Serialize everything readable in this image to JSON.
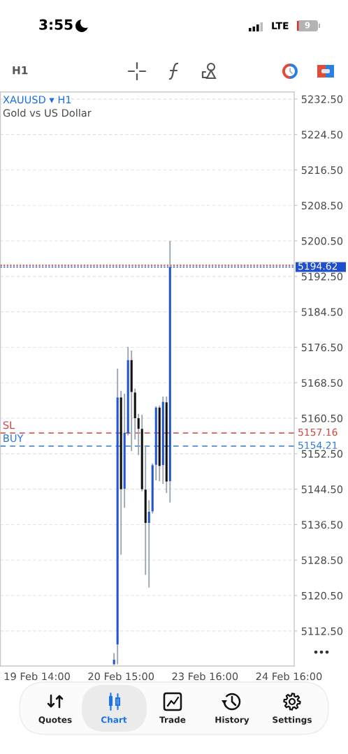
{
  "chart_data": {
    "type": "candlestick",
    "title": "XAUUSD ▾ H1",
    "subtitle": "Gold vs US Dollar",
    "categories": [
      null,
      null,
      null,
      null,
      null,
      null,
      null,
      null,
      null,
      null,
      "19 Feb 14:00",
      null,
      null,
      null,
      null,
      null,
      null,
      null,
      null,
      null,
      null,
      null,
      null,
      null,
      null,
      null,
      null,
      null,
      null,
      null,
      null,
      null,
      null,
      null,
      "20 Feb 15:00",
      null,
      null,
      null,
      null,
      null,
      null,
      null,
      null,
      null,
      null,
      null,
      null,
      null,
      null,
      null,
      null,
      null,
      null,
      null,
      null,
      null,
      null,
      null,
      "23 Feb 16:00",
      null,
      null,
      null,
      null,
      null,
      null,
      null,
      null,
      null,
      null,
      null,
      null,
      null,
      null,
      null,
      null,
      null,
      null,
      null,
      null,
      null,
      null,
      null,
      "24 Feb 16:00",
      null
    ],
    "ohlc": [
      null,
      null,
      null,
      null,
      null,
      null,
      null,
      null,
      null,
      null,
      null,
      null,
      null,
      null,
      null,
      null,
      null,
      null,
      null,
      null,
      null,
      null,
      null,
      null,
      null,
      null,
      null,
      null,
      null,
      null,
      null,
      null,
      [
        5105.0,
        5107.5,
        5104.8,
        5106.0
      ],
      [
        5109.5,
        5171.7,
        5105.0,
        5165.2
      ],
      [
        5165.2,
        5166.7,
        5129.7,
        5144.5
      ],
      [
        5144.6,
        5166.0,
        5140.3,
        5157.2
      ],
      [
        5157.1,
        5176.6,
        5156.6,
        5173.6
      ],
      [
        5173.6,
        5175.8,
        5153.1,
        5166.4
      ],
      [
        5166.3,
        5167.2,
        5155.7,
        5160.5
      ],
      [
        5160.5,
        5161.5,
        5152.2,
        5158.1
      ],
      [
        5158.1,
        5161.3,
        5144.0,
        5144.5
      ],
      [
        5144.4,
        5154.3,
        5125.2,
        5136.9
      ],
      [
        5136.9,
        5142.0,
        5122.3,
        5139.4
      ],
      [
        5139.5,
        5150.3,
        5139.0,
        5149.9
      ],
      [
        5150.0,
        5163.2,
        5146.5,
        5162.9
      ],
      [
        5162.9,
        5163.4,
        5146.3,
        5149.7
      ],
      [
        5149.9,
        5165.4,
        5145.7,
        5164.2
      ],
      [
        5164.1,
        5165.4,
        5143.6,
        5146.2
      ],
      [
        5146.3,
        5200.5,
        5141.5,
        5194.62
      ],
      null,
      null,
      null,
      null,
      null,
      null,
      null,
      null,
      null,
      null,
      null,
      null,
      null,
      null,
      null,
      null,
      null,
      null,
      null,
      null,
      null,
      null,
      null,
      null,
      null,
      null,
      null,
      null,
      null,
      null,
      null,
      null,
      null,
      null,
      null
    ],
    "colors": [
      null,
      null,
      null,
      null,
      null,
      null,
      null,
      null,
      null,
      null,
      null,
      null,
      null,
      null,
      null,
      null,
      null,
      null,
      null,
      null,
      null,
      null,
      null,
      null,
      null,
      null,
      null,
      null,
      null,
      null,
      null,
      null,
      "#2456d0",
      "#2456d0",
      "#111111",
      "#2456d0",
      "#2456d0",
      "#111111",
      "#111111",
      "#111111",
      "#111111",
      "#111111",
      "#2456d0",
      "#2456d0",
      "#2456d0",
      "#111111",
      "#2456d0",
      "#111111",
      "#2456d0",
      null,
      null,
      null,
      null,
      null,
      null,
      null,
      null,
      null,
      null,
      null,
      null,
      null,
      null,
      null,
      null,
      null,
      null,
      null,
      null,
      null,
      null,
      null,
      null,
      null,
      null,
      null,
      null,
      null,
      null,
      null,
      null,
      null,
      null,
      null
    ],
    "ylim": [
      5104.6,
      5234.1
    ],
    "yticks": [
      {
        "value": 5232.5,
        "label": "5232.50"
      },
      {
        "value": 5224.5,
        "label": "5224.50"
      },
      {
        "value": 5216.5,
        "label": "5216.50"
      },
      {
        "value": 5208.5,
        "label": "5208.50"
      },
      {
        "value": 5200.5,
        "label": "5200.50"
      },
      {
        "value": 5192.5,
        "label": "5192.50"
      },
      {
        "value": 5184.5,
        "label": "5184.50"
      },
      {
        "value": 5176.5,
        "label": "5176.50"
      },
      {
        "value": 5168.5,
        "label": "5168.50"
      },
      {
        "value": 5160.5,
        "label": "5160.50"
      },
      {
        "value": 5152.5,
        "label": "5152.50"
      },
      {
        "value": 5144.5,
        "label": "5144.50"
      },
      {
        "value": 5136.5,
        "label": "5136.50"
      },
      {
        "value": 5128.5,
        "label": "5128.50"
      },
      {
        "value": 5120.5,
        "label": "5120.50"
      },
      {
        "value": 5112.5,
        "label": "5112.50"
      }
    ],
    "grid": "y",
    "ref_lines": [
      {
        "axis": "y",
        "value": 5195.0,
        "color": "#c0392b",
        "line_style": "dotted"
      },
      {
        "axis": "y",
        "value": 5194.62,
        "label": "5194.62",
        "color": "#1f4fcc",
        "line_style": "dotted"
      },
      {
        "axis": "y",
        "value": 5157.16,
        "label": "SL",
        "color": "#d0433f",
        "line_style": "dashed"
      },
      {
        "axis": "y",
        "value": 5154.21,
        "label": "BUY",
        "color": "#2f78d6",
        "line_style": "dashed"
      }
    ],
    "annotations": [
      "3:55",
      "LTE",
      "9",
      "H1",
      "Quotes",
      "Chart",
      "Trade",
      "History",
      "Settings",
      "5157.16",
      "5154.21"
    ]
  }
}
